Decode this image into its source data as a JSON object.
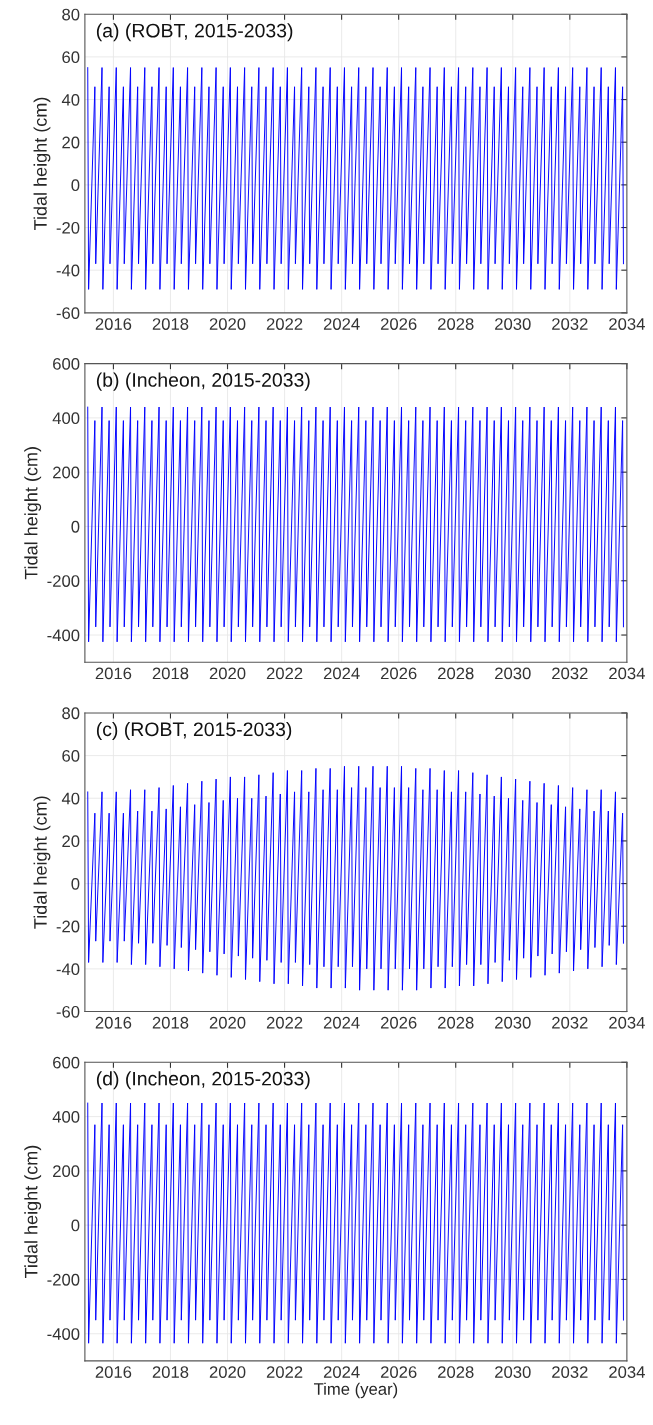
{
  "chart_data": [
    {
      "type": "line",
      "title": "(a) (ROBT, 2015-2033)",
      "ylabel": "Tidal height (cm)",
      "xlim": [
        2015,
        2034
      ],
      "xticks": [
        2016,
        2018,
        2020,
        2022,
        2024,
        2026,
        2028,
        2030,
        2032,
        2034
      ],
      "ylim": [
        -60,
        80
      ],
      "yticks": [
        -60,
        -40,
        -20,
        0,
        20,
        40,
        60,
        80
      ],
      "grid": true,
      "x": [
        2015.1,
        2015.13,
        2015.35,
        2015.38,
        2015.6,
        2015.63,
        2015.85,
        2015.88,
        2016.1,
        2016.13,
        2016.35,
        2016.38,
        2016.6,
        2016.63,
        2016.85,
        2016.88,
        2017.1,
        2017.13,
        2017.35,
        2017.38,
        2017.6,
        2017.63,
        2017.85,
        2017.88,
        2018.1,
        2018.13,
        2018.35,
        2018.38,
        2018.6,
        2018.63,
        2018.85,
        2018.88,
        2019.1,
        2019.13,
        2019.35,
        2019.38,
        2019.6,
        2019.63,
        2019.85,
        2019.88,
        2020.1,
        2020.13,
        2020.35,
        2020.38,
        2020.6,
        2020.63,
        2020.85,
        2020.88,
        2021.1,
        2021.13,
        2021.35,
        2021.38,
        2021.6,
        2021.63,
        2021.85,
        2021.88,
        2022.1,
        2022.13,
        2022.35,
        2022.38,
        2022.6,
        2022.63,
        2022.85,
        2022.88,
        2023.1,
        2023.13,
        2023.35,
        2023.38,
        2023.6,
        2023.63,
        2023.85,
        2023.88,
        2024.1,
        2024.13,
        2024.35,
        2024.38,
        2024.6,
        2024.63,
        2024.85,
        2024.88,
        2025.1,
        2025.13,
        2025.35,
        2025.38,
        2025.6,
        2025.63,
        2025.85,
        2025.88,
        2026.1,
        2026.13,
        2026.35,
        2026.38,
        2026.6,
        2026.63,
        2026.85,
        2026.88,
        2027.1,
        2027.13,
        2027.35,
        2027.38,
        2027.6,
        2027.63,
        2027.85,
        2027.88,
        2028.1,
        2028.13,
        2028.35,
        2028.38,
        2028.6,
        2028.63,
        2028.85,
        2028.88,
        2029.1,
        2029.13,
        2029.35,
        2029.38,
        2029.6,
        2029.63,
        2029.85,
        2029.88,
        2030.1,
        2030.13,
        2030.35,
        2030.38,
        2030.6,
        2030.63,
        2030.85,
        2030.88,
        2031.1,
        2031.13,
        2031.35,
        2031.38,
        2031.6,
        2031.63,
        2031.85,
        2031.88,
        2032.1,
        2032.13,
        2032.35,
        2032.38,
        2032.6,
        2032.63,
        2032.85,
        2032.88,
        2033.1,
        2033.13,
        2033.35,
        2033.38,
        2033.6,
        2033.63,
        2033.85,
        2033.88
      ],
      "series": [
        {
          "color": "#0000ff",
          "values": [
            55,
            -49,
            46,
            -37,
            55,
            -49,
            46,
            -37,
            55,
            -49,
            46,
            -37,
            55,
            -49,
            46,
            -37,
            55,
            -49,
            46,
            -37,
            55,
            -49,
            46,
            -37,
            55,
            -49,
            46,
            -37,
            55,
            -49,
            46,
            -37,
            55,
            -49,
            46,
            -37,
            55,
            -49,
            46,
            -37,
            55,
            -49,
            46,
            -37,
            55,
            -49,
            46,
            -37,
            55,
            -49,
            46,
            -37,
            55,
            -49,
            46,
            -37,
            55,
            -49,
            46,
            -37,
            55,
            -49,
            46,
            -37,
            55,
            -49,
            46,
            -37,
            55,
            -49,
            46,
            -37,
            55,
            -49,
            46,
            -37,
            55,
            -49,
            46,
            -37,
            55,
            -49,
            46,
            -37,
            55,
            -49,
            46,
            -37,
            55,
            -49,
            46,
            -37,
            55,
            -49,
            46,
            -37,
            55,
            -49,
            46,
            -37,
            55,
            -49,
            46,
            -37,
            55,
            -49,
            46,
            -37,
            55,
            -49,
            46,
            -37,
            55,
            -49,
            46,
            -37,
            55,
            -49,
            46,
            -37,
            55,
            -49,
            46,
            -37,
            55,
            -49,
            46,
            -37,
            55,
            -49,
            46,
            -37,
            55,
            -49,
            46,
            -37,
            55,
            -49,
            46,
            -37,
            55,
            -49,
            46,
            -37,
            55,
            -49,
            46,
            -37,
            55,
            -49,
            46,
            -37
          ]
        }
      ]
    },
    {
      "type": "line",
      "title": "(b) (Incheon, 2015-2033)",
      "ylabel": "Tidal height (cm)",
      "xlim": [
        2015,
        2034
      ],
      "xticks": [
        2016,
        2018,
        2020,
        2022,
        2024,
        2026,
        2028,
        2030,
        2032,
        2034
      ],
      "ylim": [
        -500,
        600
      ],
      "yticks": [
        -400,
        -200,
        0,
        200,
        400,
        600
      ],
      "grid": true,
      "x": [
        2015.1,
        2015.13,
        2015.35,
        2015.38,
        2015.6,
        2015.63,
        2015.85,
        2015.88,
        2016.1,
        2016.13,
        2016.35,
        2016.38,
        2016.6,
        2016.63,
        2016.85,
        2016.88,
        2017.1,
        2017.13,
        2017.35,
        2017.38,
        2017.6,
        2017.63,
        2017.85,
        2017.88,
        2018.1,
        2018.13,
        2018.35,
        2018.38,
        2018.6,
        2018.63,
        2018.85,
        2018.88,
        2019.1,
        2019.13,
        2019.35,
        2019.38,
        2019.6,
        2019.63,
        2019.85,
        2019.88,
        2020.1,
        2020.13,
        2020.35,
        2020.38,
        2020.6,
        2020.63,
        2020.85,
        2020.88,
        2021.1,
        2021.13,
        2021.35,
        2021.38,
        2021.6,
        2021.63,
        2021.85,
        2021.88,
        2022.1,
        2022.13,
        2022.35,
        2022.38,
        2022.6,
        2022.63,
        2022.85,
        2022.88,
        2023.1,
        2023.13,
        2023.35,
        2023.38,
        2023.6,
        2023.63,
        2023.85,
        2023.88,
        2024.1,
        2024.13,
        2024.35,
        2024.38,
        2024.6,
        2024.63,
        2024.85,
        2024.88,
        2025.1,
        2025.13,
        2025.35,
        2025.38,
        2025.6,
        2025.63,
        2025.85,
        2025.88,
        2026.1,
        2026.13,
        2026.35,
        2026.38,
        2026.6,
        2026.63,
        2026.85,
        2026.88,
        2027.1,
        2027.13,
        2027.35,
        2027.38,
        2027.6,
        2027.63,
        2027.85,
        2027.88,
        2028.1,
        2028.13,
        2028.35,
        2028.38,
        2028.6,
        2028.63,
        2028.85,
        2028.88,
        2029.1,
        2029.13,
        2029.35,
        2029.38,
        2029.6,
        2029.63,
        2029.85,
        2029.88,
        2030.1,
        2030.13,
        2030.35,
        2030.38,
        2030.6,
        2030.63,
        2030.85,
        2030.88,
        2031.1,
        2031.13,
        2031.35,
        2031.38,
        2031.6,
        2031.63,
        2031.85,
        2031.88,
        2032.1,
        2032.13,
        2032.35,
        2032.38,
        2032.6,
        2032.63,
        2032.85,
        2032.88,
        2033.1,
        2033.13,
        2033.35,
        2033.38,
        2033.6,
        2033.63,
        2033.85,
        2033.88
      ],
      "series": [
        {
          "color": "#0000ff",
          "values": [
            440,
            -425,
            390,
            -370,
            440,
            -425,
            390,
            -370,
            440,
            -425,
            390,
            -370,
            440,
            -425,
            390,
            -370,
            440,
            -425,
            390,
            -370,
            440,
            -425,
            390,
            -370,
            440,
            -425,
            390,
            -370,
            440,
            -425,
            390,
            -370,
            440,
            -425,
            390,
            -370,
            440,
            -425,
            390,
            -370,
            440,
            -425,
            390,
            -370,
            440,
            -425,
            390,
            -370,
            440,
            -425,
            390,
            -370,
            440,
            -425,
            390,
            -370,
            440,
            -425,
            390,
            -370,
            440,
            -425,
            390,
            -370,
            440,
            -425,
            390,
            -370,
            440,
            -425,
            390,
            -370,
            440,
            -425,
            390,
            -370,
            440,
            -425,
            390,
            -370,
            440,
            -425,
            390,
            -370,
            440,
            -425,
            390,
            -370,
            440,
            -425,
            390,
            -370,
            440,
            -425,
            390,
            -370,
            440,
            -425,
            390,
            -370,
            440,
            -425,
            390,
            -370,
            440,
            -425,
            390,
            -370,
            440,
            -425,
            390,
            -370,
            440,
            -425,
            390,
            -370,
            440,
            -425,
            390,
            -370,
            440,
            -425,
            390,
            -370,
            440,
            -425,
            390,
            -370,
            440,
            -425,
            390,
            -370,
            440,
            -425,
            390,
            -370,
            440,
            -425,
            390,
            -370,
            440,
            -425,
            390,
            -370,
            440,
            -425,
            390,
            -370,
            440,
            -425,
            390,
            -370
          ]
        }
      ]
    },
    {
      "type": "line",
      "title": "(c) (ROBT, 2015-2033)",
      "ylabel": "Tidal height (cm)",
      "xlim": [
        2015,
        2034
      ],
      "xticks": [
        2016,
        2018,
        2020,
        2022,
        2024,
        2026,
        2028,
        2030,
        2032,
        2034
      ],
      "ylim": [
        -60,
        80
      ],
      "yticks": [
        -60,
        -40,
        -20,
        0,
        20,
        40,
        60,
        80
      ],
      "grid": true,
      "x": [
        2015.1,
        2015.13,
        2015.35,
        2015.38,
        2015.6,
        2015.63,
        2015.85,
        2015.88,
        2016.1,
        2016.13,
        2016.35,
        2016.38,
        2016.6,
        2016.63,
        2016.85,
        2016.88,
        2017.1,
        2017.13,
        2017.35,
        2017.38,
        2017.6,
        2017.63,
        2017.85,
        2017.88,
        2018.1,
        2018.13,
        2018.35,
        2018.38,
        2018.6,
        2018.63,
        2018.85,
        2018.88,
        2019.1,
        2019.13,
        2019.35,
        2019.38,
        2019.6,
        2019.63,
        2019.85,
        2019.88,
        2020.1,
        2020.13,
        2020.35,
        2020.38,
        2020.6,
        2020.63,
        2020.85,
        2020.88,
        2021.1,
        2021.13,
        2021.35,
        2021.38,
        2021.6,
        2021.63,
        2021.85,
        2021.88,
        2022.1,
        2022.13,
        2022.35,
        2022.38,
        2022.6,
        2022.63,
        2022.85,
        2022.88,
        2023.1,
        2023.13,
        2023.35,
        2023.38,
        2023.6,
        2023.63,
        2023.85,
        2023.88,
        2024.1,
        2024.13,
        2024.35,
        2024.38,
        2024.6,
        2024.63,
        2024.85,
        2024.88,
        2025.1,
        2025.13,
        2025.35,
        2025.38,
        2025.6,
        2025.63,
        2025.85,
        2025.88,
        2026.1,
        2026.13,
        2026.35,
        2026.38,
        2026.6,
        2026.63,
        2026.85,
        2026.88,
        2027.1,
        2027.13,
        2027.35,
        2027.38,
        2027.6,
        2027.63,
        2027.85,
        2027.88,
        2028.1,
        2028.13,
        2028.35,
        2028.38,
        2028.6,
        2028.63,
        2028.85,
        2028.88,
        2029.1,
        2029.13,
        2029.35,
        2029.38,
        2029.6,
        2029.63,
        2029.85,
        2029.88,
        2030.1,
        2030.13,
        2030.35,
        2030.38,
        2030.6,
        2030.63,
        2030.85,
        2030.88,
        2031.1,
        2031.13,
        2031.35,
        2031.38,
        2031.6,
        2031.63,
        2031.85,
        2031.88,
        2032.1,
        2032.13,
        2032.35,
        2032.38,
        2032.6,
        2032.63,
        2032.85,
        2032.88,
        2033.1,
        2033.13,
        2033.35,
        2033.38,
        2033.6,
        2033.63,
        2033.85,
        2033.88
      ],
      "series": [
        {
          "color": "#0000ff",
          "values": [
            43,
            -37,
            33,
            -27,
            43,
            -37,
            33,
            -27,
            43,
            -37,
            33,
            -27,
            44,
            -38,
            34,
            -28,
            44,
            -38,
            34,
            -28,
            45,
            -39,
            35,
            -29,
            46,
            -40,
            36,
            -30,
            47,
            -41,
            37,
            -31,
            48,
            -42,
            38,
            -32,
            49,
            -43,
            39,
            -33,
            50,
            -44,
            40,
            -34,
            50,
            -45,
            40,
            -35,
            51,
            -46,
            41,
            -36,
            52,
            -47,
            42,
            -37,
            53,
            -47,
            43,
            -37,
            53,
            -48,
            43,
            -38,
            54,
            -49,
            44,
            -39,
            54,
            -49,
            44,
            -39,
            55,
            -49,
            45,
            -39,
            55,
            -50,
            45,
            -40,
            55,
            -50,
            45,
            -40,
            55,
            -50,
            45,
            -40,
            55,
            -50,
            45,
            -40,
            54,
            -50,
            44,
            -40,
            54,
            -49,
            44,
            -39,
            53,
            -49,
            43,
            -39,
            53,
            -48,
            43,
            -38,
            52,
            -48,
            42,
            -38,
            51,
            -47,
            41,
            -37,
            50,
            -46,
            40,
            -36,
            49,
            -45,
            39,
            -35,
            48,
            -44,
            38,
            -34,
            47,
            -43,
            37,
            -33,
            46,
            -42,
            36,
            -32,
            45,
            -41,
            35,
            -31,
            44,
            -40,
            34,
            -30,
            44,
            -39,
            34,
            -29,
            43,
            -38,
            33,
            -28
          ]
        }
      ]
    },
    {
      "type": "line",
      "title": "(d) (Incheon, 2015-2033)",
      "ylabel": "Tidal height (cm)",
      "xlabel": "Time (year)",
      "xlim": [
        2015,
        2034
      ],
      "xticks": [
        2016,
        2018,
        2020,
        2022,
        2024,
        2026,
        2028,
        2030,
        2032,
        2034
      ],
      "ylim": [
        -500,
        600
      ],
      "yticks": [
        -400,
        -200,
        0,
        200,
        400,
        600
      ],
      "grid": true,
      "x": [
        2015.1,
        2015.13,
        2015.35,
        2015.38,
        2015.6,
        2015.63,
        2015.85,
        2015.88,
        2016.1,
        2016.13,
        2016.35,
        2016.38,
        2016.6,
        2016.63,
        2016.85,
        2016.88,
        2017.1,
        2017.13,
        2017.35,
        2017.38,
        2017.6,
        2017.63,
        2017.85,
        2017.88,
        2018.1,
        2018.13,
        2018.35,
        2018.38,
        2018.6,
        2018.63,
        2018.85,
        2018.88,
        2019.1,
        2019.13,
        2019.35,
        2019.38,
        2019.6,
        2019.63,
        2019.85,
        2019.88,
        2020.1,
        2020.13,
        2020.35,
        2020.38,
        2020.6,
        2020.63,
        2020.85,
        2020.88,
        2021.1,
        2021.13,
        2021.35,
        2021.38,
        2021.6,
        2021.63,
        2021.85,
        2021.88,
        2022.1,
        2022.13,
        2022.35,
        2022.38,
        2022.6,
        2022.63,
        2022.85,
        2022.88,
        2023.1,
        2023.13,
        2023.35,
        2023.38,
        2023.6,
        2023.63,
        2023.85,
        2023.88,
        2024.1,
        2024.13,
        2024.35,
        2024.38,
        2024.6,
        2024.63,
        2024.85,
        2024.88,
        2025.1,
        2025.13,
        2025.35,
        2025.38,
        2025.6,
        2025.63,
        2025.85,
        2025.88,
        2026.1,
        2026.13,
        2026.35,
        2026.38,
        2026.6,
        2026.63,
        2026.85,
        2026.88,
        2027.1,
        2027.13,
        2027.35,
        2027.38,
        2027.6,
        2027.63,
        2027.85,
        2027.88,
        2028.1,
        2028.13,
        2028.35,
        2028.38,
        2028.6,
        2028.63,
        2028.85,
        2028.88,
        2029.1,
        2029.13,
        2029.35,
        2029.38,
        2029.6,
        2029.63,
        2029.85,
        2029.88,
        2030.1,
        2030.13,
        2030.35,
        2030.38,
        2030.6,
        2030.63,
        2030.85,
        2030.88,
        2031.1,
        2031.13,
        2031.35,
        2031.38,
        2031.6,
        2031.63,
        2031.85,
        2031.88,
        2032.1,
        2032.13,
        2032.35,
        2032.38,
        2032.6,
        2032.63,
        2032.85,
        2032.88,
        2033.1,
        2033.13,
        2033.35,
        2033.38,
        2033.6,
        2033.63,
        2033.85,
        2033.88
      ],
      "series": [
        {
          "color": "#0000ff",
          "values": [
            450,
            -435,
            370,
            -350,
            450,
            -435,
            370,
            -350,
            450,
            -435,
            370,
            -350,
            450,
            -435,
            370,
            -350,
            450,
            -435,
            370,
            -350,
            450,
            -435,
            370,
            -350,
            450,
            -435,
            370,
            -350,
            450,
            -435,
            370,
            -350,
            450,
            -435,
            370,
            -350,
            450,
            -435,
            370,
            -350,
            450,
            -435,
            370,
            -350,
            450,
            -435,
            370,
            -350,
            450,
            -435,
            370,
            -350,
            450,
            -435,
            370,
            -350,
            450,
            -435,
            370,
            -350,
            450,
            -435,
            370,
            -350,
            450,
            -435,
            370,
            -350,
            450,
            -435,
            370,
            -350,
            450,
            -435,
            370,
            -350,
            450,
            -435,
            370,
            -350,
            450,
            -435,
            370,
            -350,
            450,
            -435,
            370,
            -350,
            450,
            -435,
            370,
            -350,
            450,
            -435,
            370,
            -350,
            450,
            -435,
            370,
            -350,
            450,
            -435,
            370,
            -350,
            450,
            -435,
            370,
            -350,
            450,
            -435,
            370,
            -350,
            450,
            -435,
            370,
            -350,
            450,
            -435,
            370,
            -350,
            450,
            -435,
            370,
            -350,
            450,
            -435,
            370,
            -350,
            450,
            -435,
            370,
            -350,
            450,
            -435,
            370,
            -350,
            450,
            -435,
            370,
            -350,
            450,
            -435,
            370,
            -350,
            450,
            -435,
            370,
            -350,
            450,
            -435,
            370,
            -350
          ]
        }
      ]
    }
  ]
}
